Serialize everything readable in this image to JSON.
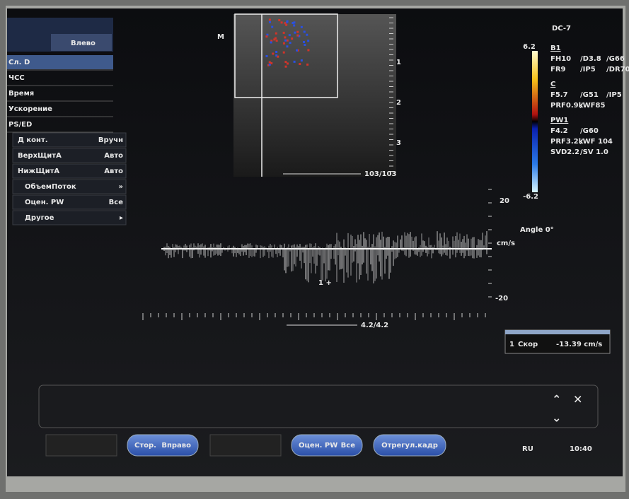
{
  "left_menu": {
    "tab": "Влево",
    "items": [
      {
        "label": "Сл. D"
      },
      {
        "label": "ЧСС"
      },
      {
        "label": "Время"
      },
      {
        "label": "Ускорение"
      },
      {
        "label": "PS/ED"
      },
      {
        "label": "Д конт.",
        "value": "Вручн"
      },
      {
        "label": "ВерхЩитА",
        "value": "Авто"
      },
      {
        "label": "НижЩитА",
        "value": "Авто"
      },
      {
        "label": "ОбъемПоток",
        "value": "»"
      },
      {
        "label": "Оцен. PW",
        "value": "Все"
      },
      {
        "label": "Другое",
        "value": "▸"
      }
    ]
  },
  "image_panel": {
    "marker": "M",
    "depth_labels": [
      "1",
      "2",
      "3"
    ],
    "frame": "103/103"
  },
  "params": {
    "probe": "DC-7",
    "scale_max": "6.2",
    "scale_min": "-6.2",
    "sections": [
      {
        "title": "B1",
        "rows": [
          [
            "FH10",
            "/D3.8",
            "/G66"
          ],
          [
            "FR9",
            "/IP5",
            "/DR70"
          ]
        ]
      },
      {
        "title": "C",
        "rows": [
          [
            "F5.7",
            "/G51",
            "/IP5"
          ],
          [
            "PRF0.9k",
            "/WF85"
          ]
        ]
      },
      {
        "title": "PW1",
        "rows": [
          [
            "F4.2",
            "/G60"
          ],
          [
            "PRF3.2k",
            "/WF 104"
          ],
          [
            "SVD2.2",
            "/SV 1.0"
          ]
        ]
      }
    ]
  },
  "spectrum": {
    "angle": "Angle 0°",
    "scale_top": "20",
    "unit": "cm/s",
    "scale_bottom": "-20",
    "frame": "4.2/4.2",
    "cursor_label": "1 +"
  },
  "measurement": {
    "index": "1",
    "label": "Скор",
    "value": "-13.39 cm/s"
  },
  "bottom_bar": {
    "buttons": [
      [
        "Стор.",
        "Вправо"
      ],
      [
        "Оцен. PW",
        "Все"
      ],
      [
        "Отрегул.кадр"
      ]
    ],
    "lang": "RU",
    "time": "10:40"
  }
}
